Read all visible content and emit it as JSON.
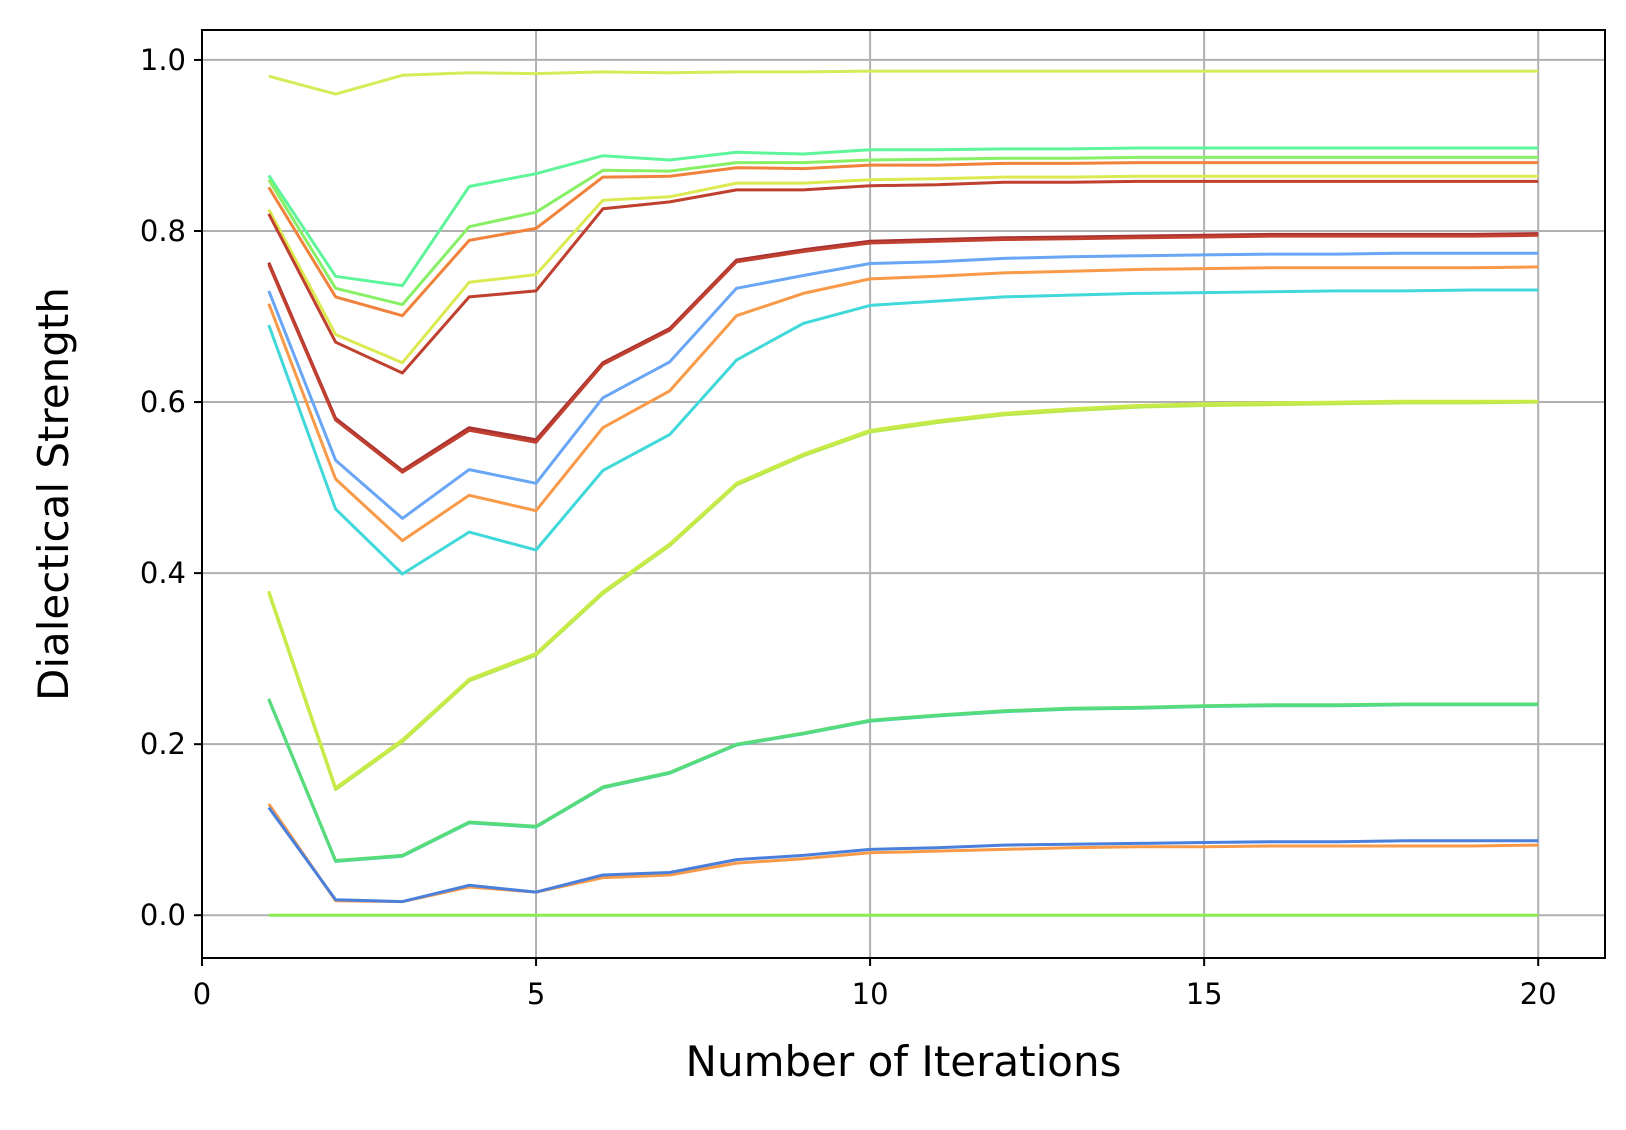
{
  "chart_data": {
    "type": "line",
    "title": "",
    "xlabel": "Number of Iterations",
    "ylabel": "Dialectical Strength",
    "xlim": [
      0,
      21
    ],
    "ylim": [
      -0.05,
      1.035
    ],
    "xticks": [
      0,
      5,
      10,
      15,
      20
    ],
    "xtick_labels": [
      "0",
      "5",
      "10",
      "15",
      "20"
    ],
    "yticks": [
      0.0,
      0.2,
      0.4,
      0.6,
      0.8,
      1.0
    ],
    "ytick_labels": [
      "0.0",
      "0.2",
      "0.4",
      "0.6",
      "0.8",
      "1.0"
    ],
    "grid": true,
    "legend": "none",
    "x": [
      1,
      2,
      3,
      4,
      5,
      6,
      7,
      8,
      9,
      10,
      11,
      12,
      13,
      14,
      15,
      16,
      17,
      18,
      19,
      20
    ],
    "series": [
      {
        "color": "#d4ec58",
        "values": [
          0.981,
          0.96,
          0.982,
          0.985,
          0.984,
          0.986,
          0.985,
          0.986,
          0.986,
          0.987,
          0.987,
          0.987,
          0.987,
          0.987,
          0.987,
          0.987,
          0.987,
          0.987,
          0.987,
          0.987
        ]
      },
      {
        "color": "#5ff59a",
        "values": [
          0.865,
          0.747,
          0.736,
          0.852,
          0.867,
          0.888,
          0.883,
          0.892,
          0.89,
          0.895,
          0.895,
          0.896,
          0.896,
          0.897,
          0.897,
          0.897,
          0.897,
          0.897,
          0.897,
          0.897
        ]
      },
      {
        "color": "#87f065",
        "values": [
          0.86,
          0.733,
          0.714,
          0.805,
          0.822,
          0.871,
          0.87,
          0.88,
          0.88,
          0.883,
          0.884,
          0.885,
          0.885,
          0.886,
          0.886,
          0.886,
          0.886,
          0.886,
          0.886,
          0.886
        ]
      },
      {
        "color": "#f0823c",
        "values": [
          0.851,
          0.723,
          0.701,
          0.789,
          0.803,
          0.863,
          0.864,
          0.874,
          0.873,
          0.877,
          0.877,
          0.879,
          0.879,
          0.88,
          0.88,
          0.88,
          0.88,
          0.88,
          0.88,
          0.88
        ]
      },
      {
        "color": "#dcea52",
        "values": [
          0.825,
          0.679,
          0.646,
          0.74,
          0.749,
          0.836,
          0.84,
          0.856,
          0.856,
          0.86,
          0.861,
          0.863,
          0.863,
          0.864,
          0.864,
          0.864,
          0.864,
          0.864,
          0.864,
          0.864
        ]
      },
      {
        "color": "#c04030",
        "values": [
          0.82,
          0.67,
          0.634,
          0.723,
          0.73,
          0.826,
          0.834,
          0.848,
          0.848,
          0.853,
          0.854,
          0.857,
          0.857,
          0.858,
          0.858,
          0.858,
          0.858,
          0.858,
          0.858,
          0.858
        ]
      },
      {
        "color": "#a83232",
        "values": [
          0.763,
          0.581,
          0.52,
          0.57,
          0.556,
          0.646,
          0.686,
          0.766,
          0.778,
          0.788,
          0.79,
          0.792,
          0.793,
          0.794,
          0.795,
          0.796,
          0.796,
          0.796,
          0.796,
          0.797
        ]
      },
      {
        "color": "#c24030",
        "values": [
          0.761,
          0.579,
          0.518,
          0.567,
          0.553,
          0.644,
          0.684,
          0.764,
          0.776,
          0.786,
          0.788,
          0.79,
          0.791,
          0.792,
          0.793,
          0.794,
          0.794,
          0.794,
          0.794,
          0.795
        ]
      },
      {
        "color": "#69a6f5",
        "values": [
          0.73,
          0.532,
          0.464,
          0.521,
          0.505,
          0.605,
          0.647,
          0.733,
          0.748,
          0.762,
          0.764,
          0.768,
          0.77,
          0.771,
          0.772,
          0.773,
          0.773,
          0.774,
          0.774,
          0.774
        ]
      },
      {
        "color": "#f89a48",
        "values": [
          0.715,
          0.51,
          0.438,
          0.491,
          0.473,
          0.57,
          0.613,
          0.701,
          0.727,
          0.744,
          0.747,
          0.751,
          0.753,
          0.755,
          0.756,
          0.757,
          0.757,
          0.757,
          0.757,
          0.758
        ]
      },
      {
        "color": "#40d8d8",
        "values": [
          0.69,
          0.475,
          0.399,
          0.448,
          0.427,
          0.52,
          0.562,
          0.649,
          0.692,
          0.713,
          0.718,
          0.723,
          0.725,
          0.727,
          0.728,
          0.729,
          0.73,
          0.73,
          0.731,
          0.731
        ]
      },
      {
        "color": "#b8e850",
        "values": [
          0.377,
          0.147,
          0.203,
          0.274,
          0.304,
          0.376,
          0.432,
          0.503,
          0.537,
          0.565,
          0.576,
          0.585,
          0.59,
          0.594,
          0.596,
          0.597,
          0.598,
          0.599,
          0.599,
          0.6
        ]
      },
      {
        "color": "#c8eb48",
        "values": [
          0.379,
          0.149,
          0.205,
          0.276,
          0.306,
          0.378,
          0.434,
          0.505,
          0.539,
          0.567,
          0.578,
          0.587,
          0.592,
          0.596,
          0.598,
          0.599,
          0.6,
          0.601,
          0.601,
          0.601
        ]
      },
      {
        "color": "#4ad49e",
        "values": [
          0.252,
          0.063,
          0.069,
          0.108,
          0.103,
          0.149,
          0.166,
          0.199,
          0.212,
          0.227,
          0.233,
          0.238,
          0.241,
          0.242,
          0.244,
          0.245,
          0.245,
          0.246,
          0.246,
          0.246
        ]
      },
      {
        "color": "#58dc7a",
        "values": [
          0.253,
          0.064,
          0.07,
          0.109,
          0.104,
          0.15,
          0.167,
          0.2,
          0.213,
          0.228,
          0.234,
          0.239,
          0.242,
          0.243,
          0.245,
          0.246,
          0.246,
          0.247,
          0.247,
          0.247
        ]
      },
      {
        "color": "#f89a48",
        "values": [
          0.13,
          0.017,
          0.016,
          0.033,
          0.027,
          0.044,
          0.047,
          0.061,
          0.066,
          0.073,
          0.075,
          0.077,
          0.079,
          0.08,
          0.08,
          0.081,
          0.081,
          0.081,
          0.081,
          0.082
        ]
      },
      {
        "color": "#4a80dc",
        "values": [
          0.126,
          0.018,
          0.016,
          0.035,
          0.027,
          0.047,
          0.05,
          0.065,
          0.07,
          0.077,
          0.079,
          0.082,
          0.083,
          0.084,
          0.085,
          0.086,
          0.086,
          0.087,
          0.087,
          0.087
        ]
      },
      {
        "color": "#8cec50",
        "values": [
          0.0,
          0.0,
          0.0,
          0.0,
          0.0,
          0.0,
          0.0,
          0.0,
          0.0,
          0.0,
          0.0,
          0.0,
          0.0,
          0.0,
          0.0,
          0.0,
          0.0,
          0.0,
          0.0,
          0.0
        ]
      }
    ]
  }
}
